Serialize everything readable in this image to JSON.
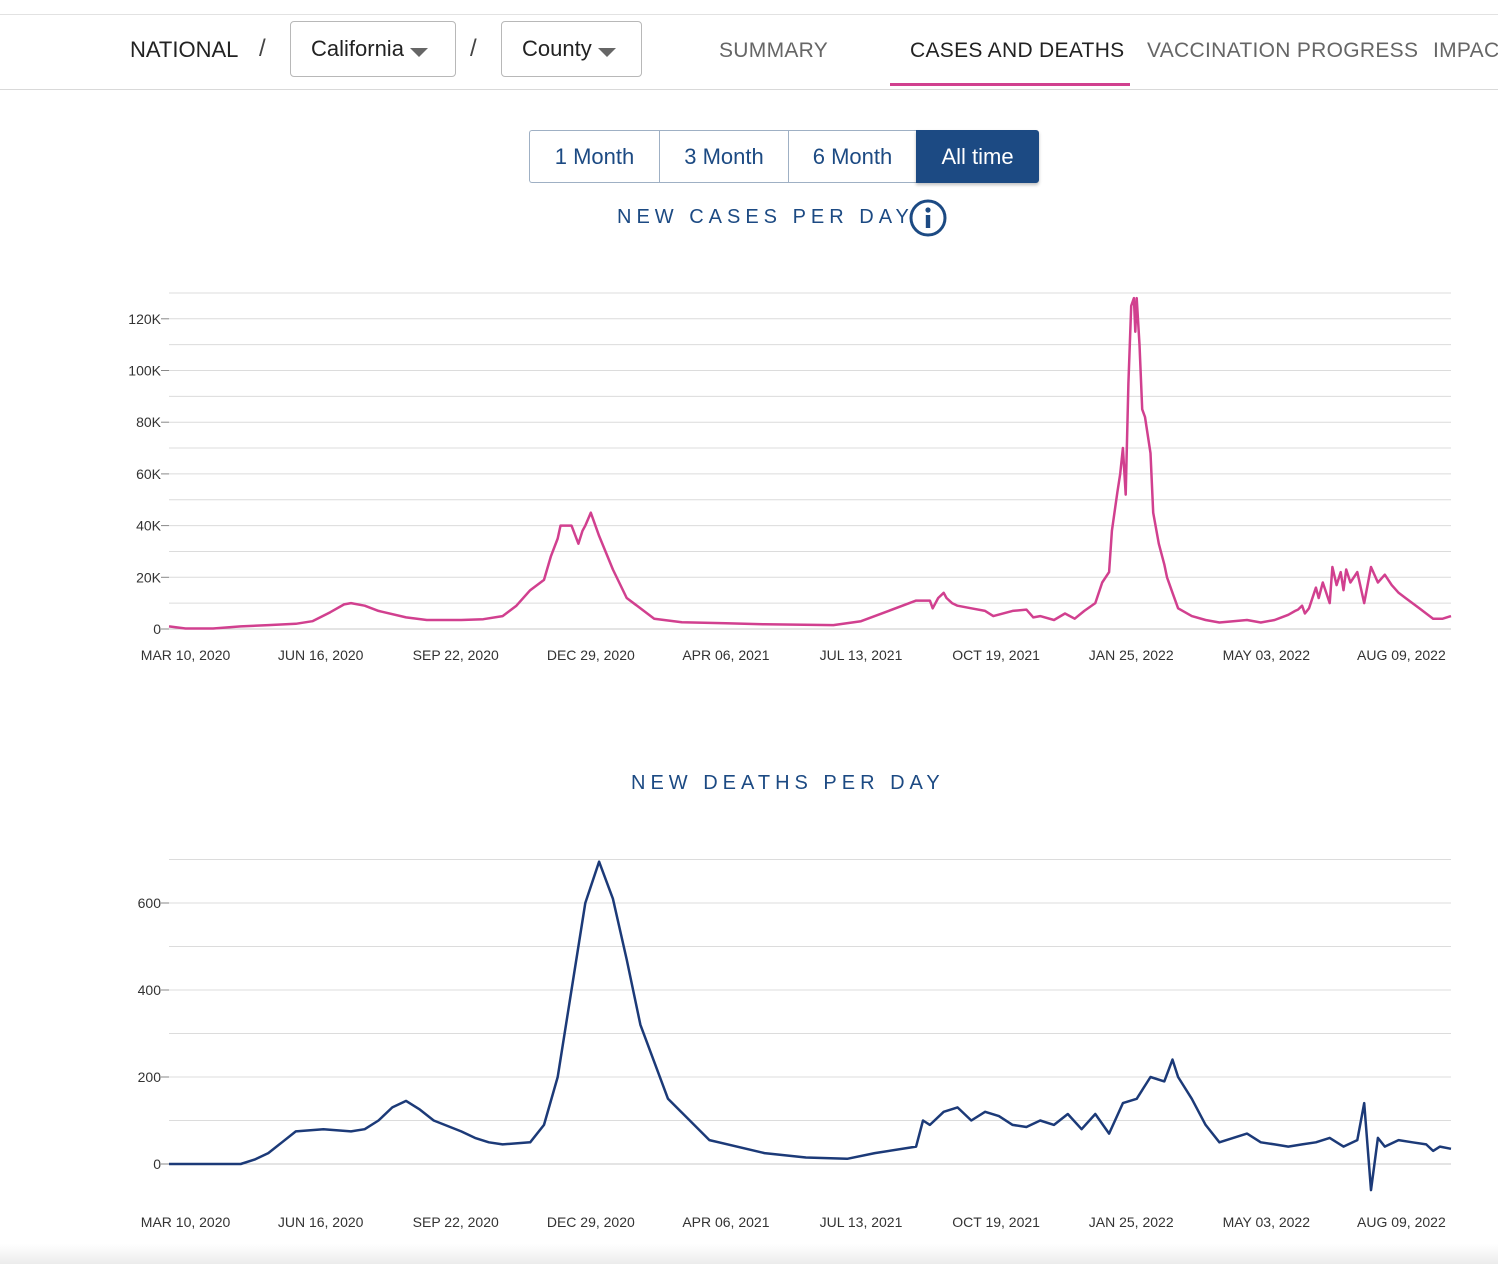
{
  "nav": {
    "national": "NATIONAL",
    "separator": "/",
    "state_select": "California",
    "county_select": "County",
    "tabs": [
      {
        "label": "SUMMARY",
        "active": false
      },
      {
        "label": "CASES AND DEATHS",
        "active": true
      },
      {
        "label": "VACCINATION PROGRESS",
        "active": false
      },
      {
        "label": "IMPACT",
        "active": false
      }
    ]
  },
  "ranges": [
    {
      "label": "1 Month",
      "active": false
    },
    {
      "label": "3 Month",
      "active": false
    },
    {
      "label": "6 Month",
      "active": false
    },
    {
      "label": "All time",
      "active": true
    }
  ],
  "colors": {
    "accent": "#1c4a83",
    "cases_line": "#d1408f",
    "deaths_line": "#1c3a78",
    "tab_underline": "#d1408f"
  },
  "info_icon": "info-icon",
  "chart_data": [
    {
      "type": "line",
      "title": "NEW CASES PER DAY",
      "xlabel": "",
      "ylabel": "",
      "ylim": [
        0,
        130000
      ],
      "yticks": [
        0,
        20000,
        40000,
        60000,
        80000,
        100000,
        120000
      ],
      "ytick_labels": [
        "0",
        "20K",
        "40K",
        "60K",
        "80K",
        "100K",
        "120K"
      ],
      "xlim_days": [
        -12,
        918
      ],
      "xticks_days": [
        0,
        98,
        196,
        294,
        392,
        490,
        588,
        686,
        784,
        882
      ],
      "xtick_labels": [
        "MAR 10, 2020",
        "JUN 16, 2020",
        "SEP 22, 2020",
        "DEC 29, 2020",
        "APR 06, 2021",
        "JUL 13, 2021",
        "OCT 19, 2021",
        "JAN 25, 2022",
        "MAY 03, 2022",
        "AUG 09, 2022"
      ],
      "x_unit": "days since MAR 10, 2020",
      "series": [
        {
          "name": "New cases",
          "x": [
            -12,
            0,
            20,
            40,
            60,
            80,
            92,
            105,
            115,
            120,
            130,
            140,
            160,
            175,
            200,
            216,
            230,
            240,
            250,
            260,
            265,
            270,
            272,
            275,
            280,
            285,
            288,
            290,
            294,
            300,
            310,
            320,
            340,
            360,
            392,
            420,
            470,
            490,
            510,
            530,
            540,
            542,
            546,
            550,
            552,
            556,
            560,
            570,
            580,
            586,
            600,
            610,
            615,
            620,
            630,
            638,
            645,
            652,
            660,
            665,
            670,
            672,
            676,
            678,
            680,
            682,
            684,
            686,
            688,
            689,
            690,
            692,
            694,
            696,
            700,
            702,
            706,
            710,
            712,
            716,
            720,
            730,
            740,
            750,
            760,
            770,
            780,
            790,
            795,
            800,
            805,
            807,
            810,
            812,
            815,
            820,
            822,
            825,
            830,
            832,
            835,
            838,
            840,
            842,
            845,
            850,
            855,
            860,
            865,
            870,
            875,
            880,
            885,
            890,
            895,
            900,
            905,
            912,
            918
          ],
          "y": [
            1000,
            200,
            200,
            1000,
            1500,
            2000,
            3000,
            6500,
            9500,
            10000,
            9000,
            7000,
            4500,
            3500,
            3500,
            3800,
            5000,
            9000,
            15000,
            19000,
            28000,
            35000,
            40000,
            40000,
            40000,
            33000,
            38000,
            40000,
            45000,
            36000,
            23000,
            12000,
            4000,
            2600,
            2200,
            1800,
            1500,
            3000,
            7000,
            11000,
            11000,
            8000,
            12000,
            14000,
            12000,
            10000,
            9000,
            8000,
            7000,
            5000,
            7000,
            7500,
            4500,
            5000,
            3500,
            6000,
            4000,
            7000,
            10000,
            18000,
            22000,
            38000,
            53000,
            60000,
            70000,
            52000,
            95000,
            125000,
            128000,
            115000,
            128000,
            110000,
            85000,
            82000,
            68000,
            45000,
            33000,
            25000,
            20000,
            14000,
            8000,
            5000,
            3500,
            2500,
            3000,
            3500,
            2500,
            3500,
            4500,
            5500,
            7000,
            7500,
            9000,
            6000,
            8000,
            16000,
            12000,
            18000,
            10000,
            24000,
            17000,
            22000,
            15000,
            23000,
            18000,
            22000,
            10000,
            24000,
            18000,
            21000,
            17000,
            14000,
            12000,
            10000,
            8000,
            6000,
            4000,
            4000,
            5000
          ]
        }
      ]
    },
    {
      "type": "line",
      "title": "NEW DEATHS PER DAY",
      "xlabel": "",
      "ylabel": "",
      "ylim": [
        -80,
        700
      ],
      "yticks": [
        0,
        200,
        400,
        600
      ],
      "ytick_labels": [
        "0",
        "200",
        "400",
        "600"
      ],
      "xlim_days": [
        -12,
        918
      ],
      "xticks_days": [
        0,
        98,
        196,
        294,
        392,
        490,
        588,
        686,
        784,
        882
      ],
      "xtick_labels": [
        "MAR 10, 2020",
        "JUN 16, 2020",
        "SEP 22, 2020",
        "DEC 29, 2020",
        "APR 06, 2021",
        "JUL 13, 2021",
        "OCT 19, 2021",
        "JAN 25, 2022",
        "MAY 03, 2022",
        "AUG 09, 2022"
      ],
      "x_unit": "days since MAR 10, 2020",
      "series": [
        {
          "name": "New deaths",
          "x": [
            -12,
            0,
            40,
            50,
            60,
            70,
            80,
            100,
            120,
            130,
            140,
            150,
            160,
            170,
            180,
            200,
            210,
            220,
            230,
            250,
            260,
            270,
            280,
            290,
            300,
            310,
            320,
            330,
            350,
            380,
            420,
            450,
            480,
            500,
            530,
            535,
            540,
            550,
            560,
            570,
            580,
            590,
            600,
            610,
            620,
            630,
            640,
            650,
            660,
            670,
            680,
            690,
            700,
            710,
            716,
            720,
            730,
            740,
            750,
            760,
            770,
            780,
            790,
            800,
            810,
            820,
            830,
            840,
            850,
            855,
            860,
            865,
            870,
            880,
            890,
            900,
            905,
            910,
            918
          ],
          "y": [
            0,
            0,
            0,
            10,
            25,
            50,
            75,
            80,
            75,
            80,
            100,
            130,
            145,
            125,
            100,
            75,
            60,
            50,
            45,
            50,
            90,
            200,
            400,
            600,
            695,
            610,
            470,
            320,
            150,
            55,
            25,
            15,
            12,
            25,
            40,
            100,
            90,
            120,
            130,
            100,
            120,
            110,
            90,
            85,
            100,
            90,
            115,
            80,
            115,
            70,
            140,
            150,
            200,
            190,
            240,
            200,
            150,
            90,
            50,
            60,
            70,
            50,
            45,
            40,
            45,
            50,
            60,
            40,
            55,
            140,
            -60,
            60,
            40,
            55,
            50,
            45,
            30,
            40,
            35
          ]
        }
      ]
    }
  ]
}
